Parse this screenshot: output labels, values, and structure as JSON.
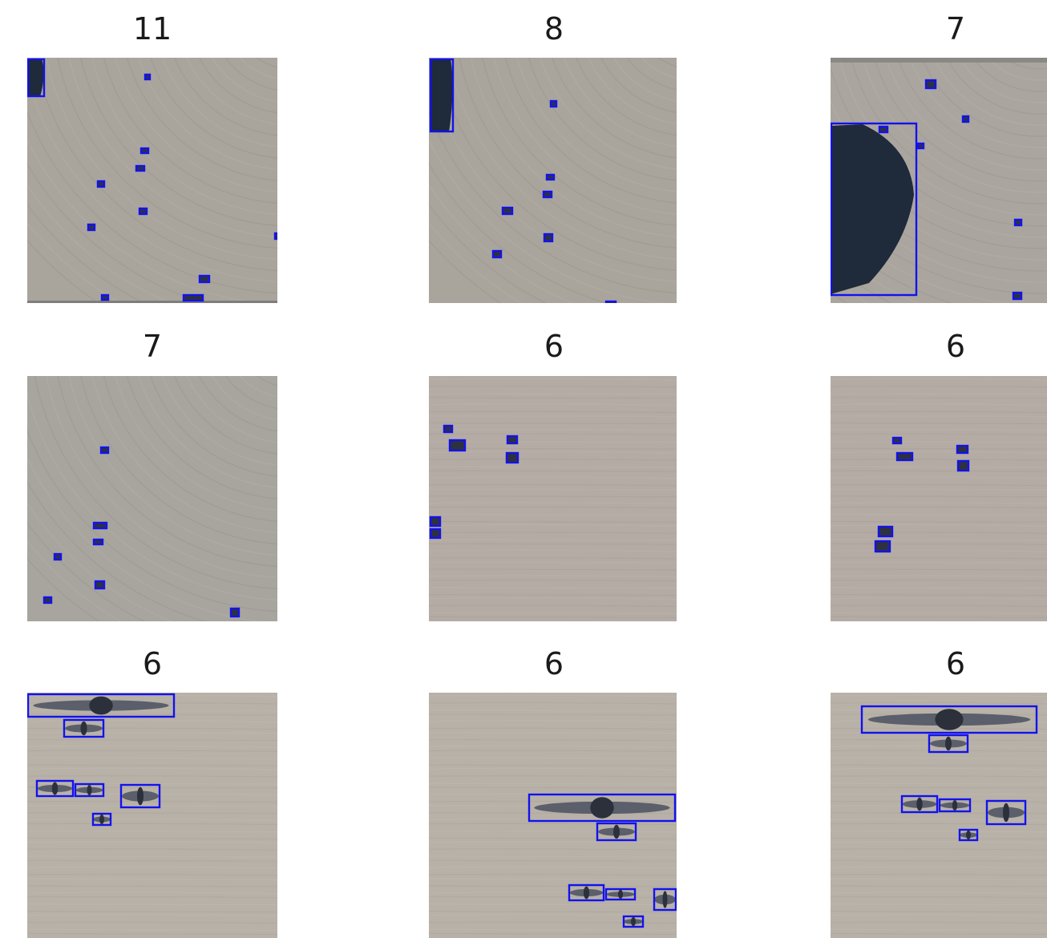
{
  "figure": {
    "panels": [
      {
        "count": "11",
        "tint": "#a9a59d",
        "pattern": "curved-dune-streaks",
        "objects": [
          {
            "kind": "large-dark-shadow"
          },
          {
            "kind": "small-object"
          },
          {
            "kind": "small-object"
          },
          {
            "kind": "small-object"
          },
          {
            "kind": "small-object"
          },
          {
            "kind": "small-object"
          },
          {
            "kind": "small-object"
          },
          {
            "kind": "small-object"
          },
          {
            "kind": "small-object"
          },
          {
            "kind": "small-object"
          },
          {
            "kind": "small-object"
          }
        ]
      },
      {
        "count": "8",
        "tint": "#a9a59d",
        "pattern": "curved-dune-streaks",
        "objects": [
          {
            "kind": "large-dark-shadow"
          },
          {
            "kind": "small-object"
          },
          {
            "kind": "small-object"
          },
          {
            "kind": "small-object"
          },
          {
            "kind": "small-object"
          },
          {
            "kind": "small-object"
          },
          {
            "kind": "small-object"
          },
          {
            "kind": "small-object"
          }
        ]
      },
      {
        "count": "7",
        "tint": "#aaa69f",
        "pattern": "curved-dune-streaks",
        "objects": [
          {
            "kind": "large-dark-shadow"
          },
          {
            "kind": "small-object"
          },
          {
            "kind": "small-object"
          },
          {
            "kind": "small-object"
          },
          {
            "kind": "small-object"
          },
          {
            "kind": "small-object"
          },
          {
            "kind": "small-object"
          }
        ]
      },
      {
        "count": "7",
        "tint": "#a8a59e",
        "pattern": "curved-dune-streaks",
        "objects": [
          {
            "kind": "small-object"
          },
          {
            "kind": "small-object"
          },
          {
            "kind": "small-object"
          },
          {
            "kind": "small-object"
          },
          {
            "kind": "small-object"
          },
          {
            "kind": "small-object"
          },
          {
            "kind": "small-object"
          }
        ]
      },
      {
        "count": "6",
        "tint": "#b4aca4",
        "pattern": "horizontal-streaks",
        "objects": [
          {
            "kind": "small-object"
          },
          {
            "kind": "small-object"
          },
          {
            "kind": "small-object"
          },
          {
            "kind": "small-object"
          },
          {
            "kind": "small-object"
          },
          {
            "kind": "small-object"
          }
        ]
      },
      {
        "count": "6",
        "tint": "#b4aca4",
        "pattern": "horizontal-streaks",
        "objects": [
          {
            "kind": "small-object"
          },
          {
            "kind": "small-object"
          },
          {
            "kind": "small-object"
          },
          {
            "kind": "small-object"
          },
          {
            "kind": "small-object"
          },
          {
            "kind": "small-object"
          }
        ]
      },
      {
        "count": "6",
        "tint": "#b8b1a8",
        "pattern": "horizontal-streaks",
        "objects": [
          {
            "kind": "aircraft-shadow"
          },
          {
            "kind": "aircraft-shadow"
          },
          {
            "kind": "aircraft-shadow"
          },
          {
            "kind": "aircraft-shadow"
          },
          {
            "kind": "aircraft-shadow"
          },
          {
            "kind": "aircraft-shadow"
          }
        ]
      },
      {
        "count": "6",
        "tint": "#b8b1a8",
        "pattern": "horizontal-streaks",
        "objects": [
          {
            "kind": "aircraft-shadow"
          },
          {
            "kind": "aircraft-shadow"
          },
          {
            "kind": "aircraft-shadow"
          },
          {
            "kind": "aircraft-shadow"
          },
          {
            "kind": "aircraft-shadow"
          },
          {
            "kind": "aircraft-shadow"
          }
        ]
      },
      {
        "count": "6",
        "tint": "#b8b1a8",
        "pattern": "horizontal-streaks",
        "objects": [
          {
            "kind": "aircraft-shadow"
          },
          {
            "kind": "aircraft-shadow"
          },
          {
            "kind": "aircraft-shadow"
          },
          {
            "kind": "aircraft-shadow"
          },
          {
            "kind": "aircraft-shadow"
          },
          {
            "kind": "aircraft-shadow"
          }
        ]
      }
    ],
    "box_color": "#1212ee",
    "shadow_color": "#1f2a3a"
  }
}
